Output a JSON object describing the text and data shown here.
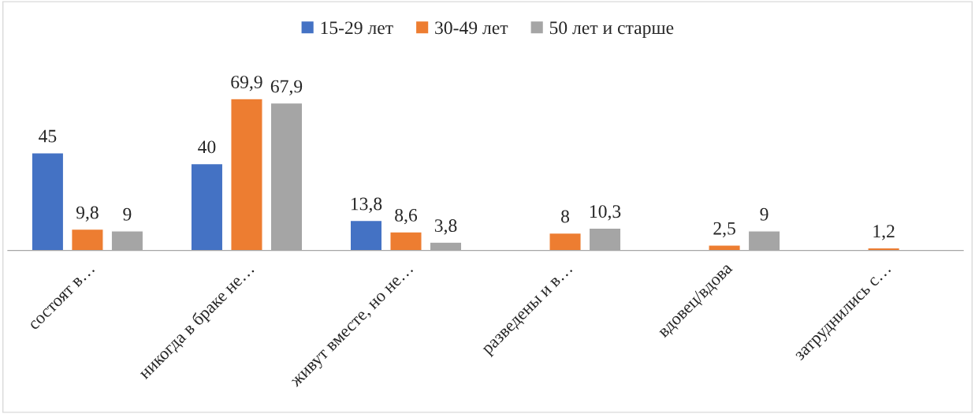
{
  "chart_data": {
    "type": "bar",
    "categories": [
      "состоят в…",
      "никогда в браке не…",
      "живут вместе, но не…",
      "разведены и в…",
      "вдовец/вдова",
      "затруднились с…"
    ],
    "series": [
      {
        "name": "15-29 лет",
        "color": "#4472c4",
        "values": [
          45,
          40,
          13.8,
          null,
          null,
          null
        ],
        "value_labels": [
          "45",
          "40",
          "13,8",
          null,
          null,
          null
        ]
      },
      {
        "name": "30-49 лет",
        "color": "#ed7d31",
        "values": [
          9.8,
          69.9,
          8.6,
          8,
          2.5,
          1.2
        ],
        "value_labels": [
          "9,8",
          "69,9",
          "8,6",
          "8",
          "2,5",
          "1,2"
        ]
      },
      {
        "name": "50 лет и старше",
        "color": "#a5a5a5",
        "values": [
          9,
          67.9,
          3.8,
          10.3,
          9,
          null
        ],
        "value_labels": [
          "9",
          "67,9",
          "3,8",
          "10,3",
          "9",
          null
        ]
      }
    ],
    "legend": "top",
    "grid": false,
    "tick_labels": "x"
  }
}
